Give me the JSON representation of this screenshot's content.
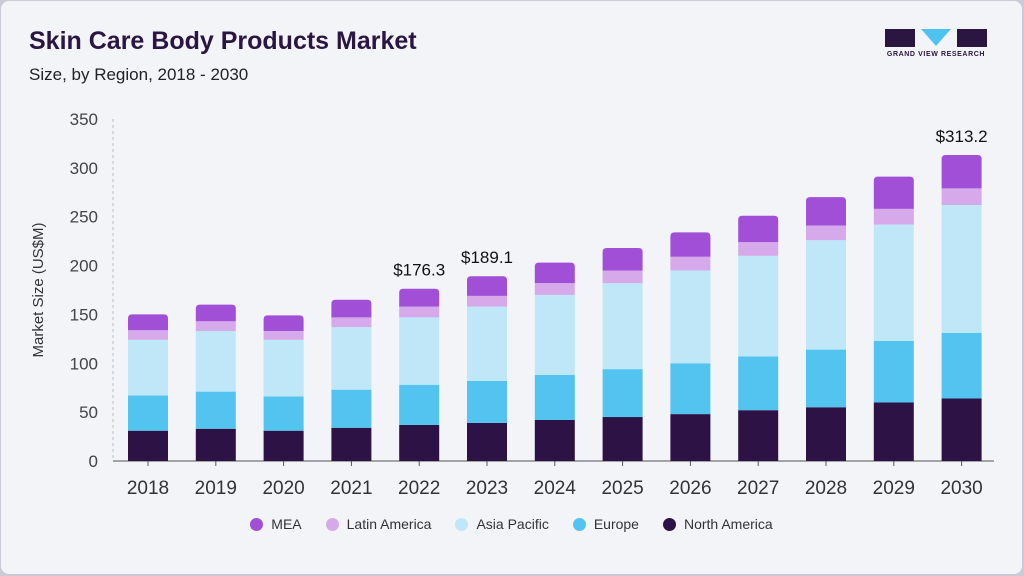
{
  "header": {
    "title": "Skin Care Body Products Market",
    "subtitle": "Size, by Region, 2018 - 2030"
  },
  "logo": {
    "text": "GRAND VIEW RESEARCH",
    "colors": {
      "dark": "#2a1640",
      "accent": "#4ec3ef"
    }
  },
  "chart_data": {
    "type": "bar",
    "stacked": true,
    "title": "Skin Care Body Products Market",
    "subtitle": "Size, by Region, 2018 - 2030",
    "xlabel": "",
    "ylabel": "Market Size (US$M)",
    "ylim": [
      0,
      350
    ],
    "yticks": [
      0,
      50,
      100,
      150,
      200,
      250,
      300,
      350
    ],
    "grid": false,
    "legend_position": "bottom",
    "categories": [
      "2018",
      "2019",
      "2020",
      "2021",
      "2022",
      "2023",
      "2024",
      "2025",
      "2026",
      "2027",
      "2028",
      "2029",
      "2030"
    ],
    "series": [
      {
        "name": "North America",
        "color": "#2d1245",
        "values": [
          31,
          33,
          31,
          34,
          37,
          39,
          42,
          45,
          48,
          52,
          55,
          60,
          64
        ]
      },
      {
        "name": "Europe",
        "color": "#52c4ef",
        "values": [
          36,
          38,
          35,
          39,
          41,
          43,
          46,
          49,
          52,
          55,
          59,
          63,
          67
        ]
      },
      {
        "name": "Asia Pacific",
        "color": "#bfe7f8",
        "values": [
          57,
          62,
          58,
          64,
          69,
          76,
          82,
          88,
          95,
          103,
          112,
          119,
          131
        ]
      },
      {
        "name": "Latin America",
        "color": "#d5a9ea",
        "values": [
          10,
          10,
          9,
          10,
          11,
          11,
          12,
          13,
          14,
          14,
          15,
          16,
          17
        ]
      },
      {
        "name": "MEA",
        "color": "#a04fd6",
        "values": [
          16,
          17,
          16,
          18,
          18.3,
          20.1,
          21,
          23,
          25,
          27,
          29,
          33,
          34.2
        ]
      }
    ],
    "annotations": [
      {
        "category": "2022",
        "text": "$176.3"
      },
      {
        "category": "2023",
        "text": "$189.1"
      },
      {
        "category": "2030",
        "text": "$313.2"
      }
    ],
    "legend_order": [
      "MEA",
      "Latin America",
      "Asia Pacific",
      "Europe",
      "North America"
    ]
  }
}
